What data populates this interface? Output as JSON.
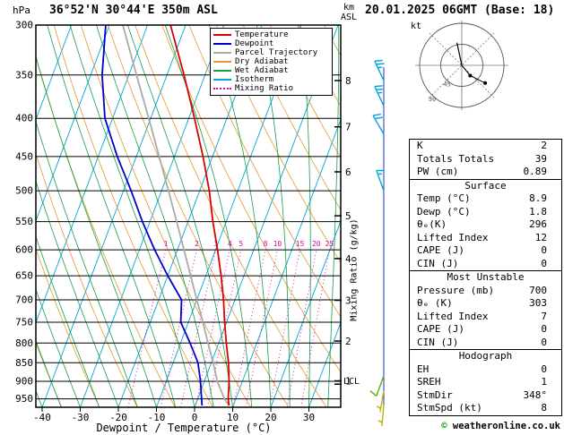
{
  "title": "36°52'N 30°44'E 350m ASL",
  "timestamp": "20.01.2025 06GMT (Base: 18)",
  "units": {
    "pressure": "hPa",
    "height": "km",
    "asl": "ASL",
    "hodograph": "kt"
  },
  "legend": [
    {
      "label": "Temperature",
      "color": "#dd0000",
      "dotted": false
    },
    {
      "label": "Dewpoint",
      "color": "#0000cc",
      "dotted": false
    },
    {
      "label": "Parcel Trajectory",
      "color": "#aaaaaa",
      "dotted": false
    },
    {
      "label": "Dry Adiabat",
      "color": "#e09b2d",
      "dotted": false
    },
    {
      "label": "Wet Adiabat",
      "color": "#11a04b",
      "dotted": false
    },
    {
      "label": "Isotherm",
      "color": "#00a6d8",
      "dotted": false
    },
    {
      "label": "Mixing Ratio",
      "color": "#dd00aa",
      "dotted": true
    }
  ],
  "axes": {
    "pressure_ticks": [
      300,
      350,
      400,
      450,
      500,
      550,
      600,
      650,
      700,
      750,
      800,
      850,
      900,
      950
    ],
    "temp_ticks": [
      -40,
      -30,
      -20,
      -10,
      0,
      10,
      20,
      30
    ],
    "xlabel": "Dewpoint / Temperature (°C)",
    "km_ticks": [
      1,
      2,
      3,
      4,
      5,
      6,
      7,
      8
    ],
    "right_axis_label": "Mixing Ratio (g/kg)",
    "lcl_label": "LCL"
  },
  "hodograph": {
    "ring_labels": [
      "45",
      "90"
    ]
  },
  "indices": {
    "sections": [
      {
        "header": null,
        "rows": [
          [
            "K",
            "2"
          ],
          [
            "Totals Totals",
            "39"
          ],
          [
            "PW (cm)",
            "0.89"
          ]
        ]
      },
      {
        "header": "Surface",
        "rows": [
          [
            "Temp (°C)",
            "8.9"
          ],
          [
            "Dewp (°C)",
            "1.8"
          ],
          [
            "θₑ(K)",
            "296"
          ],
          [
            "Lifted Index",
            "12"
          ],
          [
            "CAPE (J)",
            "0"
          ],
          [
            "CIN (J)",
            "0"
          ]
        ]
      },
      {
        "header": "Most Unstable",
        "rows": [
          [
            "Pressure (mb)",
            "700"
          ],
          [
            "θₑ (K)",
            "303"
          ],
          [
            "Lifted Index",
            "7"
          ],
          [
            "CAPE (J)",
            "0"
          ],
          [
            "CIN (J)",
            "0"
          ]
        ]
      },
      {
        "header": "Hodograph",
        "rows": [
          [
            "EH",
            "0"
          ],
          [
            "SREH",
            "1"
          ],
          [
            "StmDir",
            "348°"
          ],
          [
            "StmSpd (kt)",
            "8"
          ]
        ]
      }
    ]
  },
  "footer": {
    "copyright_symbol": "©",
    "copyright_text": "weatheronline.co.uk"
  },
  "chart_data": {
    "type": "skewt-log-p",
    "title": "36°52'N 30°44'E 350m ASL",
    "xlabel": "Dewpoint / Temperature (°C)",
    "ylabel": "hPa",
    "pressure_range_hPa": [
      300,
      975
    ],
    "temp_axis_range_C": [
      -40,
      30
    ],
    "colors": {
      "temperature": "#dd0000",
      "dewpoint": "#0000cc",
      "parcel": "#aaaaaa",
      "dry_adiabat": "#e09b2d",
      "wet_adiabat": "#11a04b",
      "isotherm": "#00a6d8",
      "mixing_ratio": "#dd00aa",
      "grid": "#000000",
      "barb_staff_line": "#2233cc"
    },
    "background": {
      "isotherm_step_C": 10,
      "dry_adiabat_step_K": 10,
      "wet_adiabat_step_C": 5
    },
    "mixing_ratio_lines_gkg": [
      1,
      2,
      3,
      4,
      5,
      8,
      10,
      15,
      20,
      25
    ],
    "series": {
      "pressure_hPa": [
        970,
        950,
        900,
        850,
        800,
        750,
        700,
        650,
        600,
        550,
        500,
        450,
        400,
        350,
        300
      ],
      "temperature_C": [
        8.9,
        8.0,
        6.5,
        4.5,
        2.0,
        -0.5,
        -3.0,
        -6.0,
        -9.5,
        -13.5,
        -17.5,
        -22.5,
        -28.5,
        -35.5,
        -44.0
      ],
      "dewpoint_C": [
        1.8,
        1.0,
        -1.0,
        -3.5,
        -7.5,
        -12.0,
        -14.0,
        -20.0,
        -26.0,
        -32.0,
        -38.0,
        -45.0,
        -52.0,
        -57.0,
        -61.0
      ],
      "parcel_C": [
        8.9,
        7.0,
        3.4,
        0.5,
        -2.8,
        -6.2,
        -10.0,
        -14.0,
        -18.3,
        -23.0,
        -28.2,
        -34.0,
        -40.5,
        -48.0,
        -56.5
      ]
    },
    "lcl_hPa": 908,
    "km_asl_ticks": [
      1,
      2,
      3,
      4,
      5,
      6,
      7,
      8
    ],
    "wind_barbs": [
      {
        "p": 356,
        "dir": 335,
        "spd": 25,
        "color": "#00a6d8"
      },
      {
        "p": 385,
        "dir": 335,
        "spd": 25,
        "color": "#00a6d8"
      },
      {
        "p": 420,
        "dir": 330,
        "spd": 20,
        "color": "#00a6d8"
      },
      {
        "p": 500,
        "dir": 340,
        "spd": 15,
        "color": "#00a6d8"
      },
      {
        "p": 885,
        "dir": 200,
        "spd": 10,
        "color": "#55b400"
      },
      {
        "p": 927,
        "dir": 190,
        "spd": 5,
        "color": "#b4b400"
      },
      {
        "p": 967,
        "dir": 185,
        "spd": 5,
        "color": "#b4b400"
      }
    ],
    "hodograph_trace_kt": [
      [
        0,
        0
      ],
      [
        18,
        -22
      ],
      [
        50,
        -38
      ]
    ],
    "storm_motion": {
      "dir_deg": 348,
      "spd_kt": 8
    }
  }
}
